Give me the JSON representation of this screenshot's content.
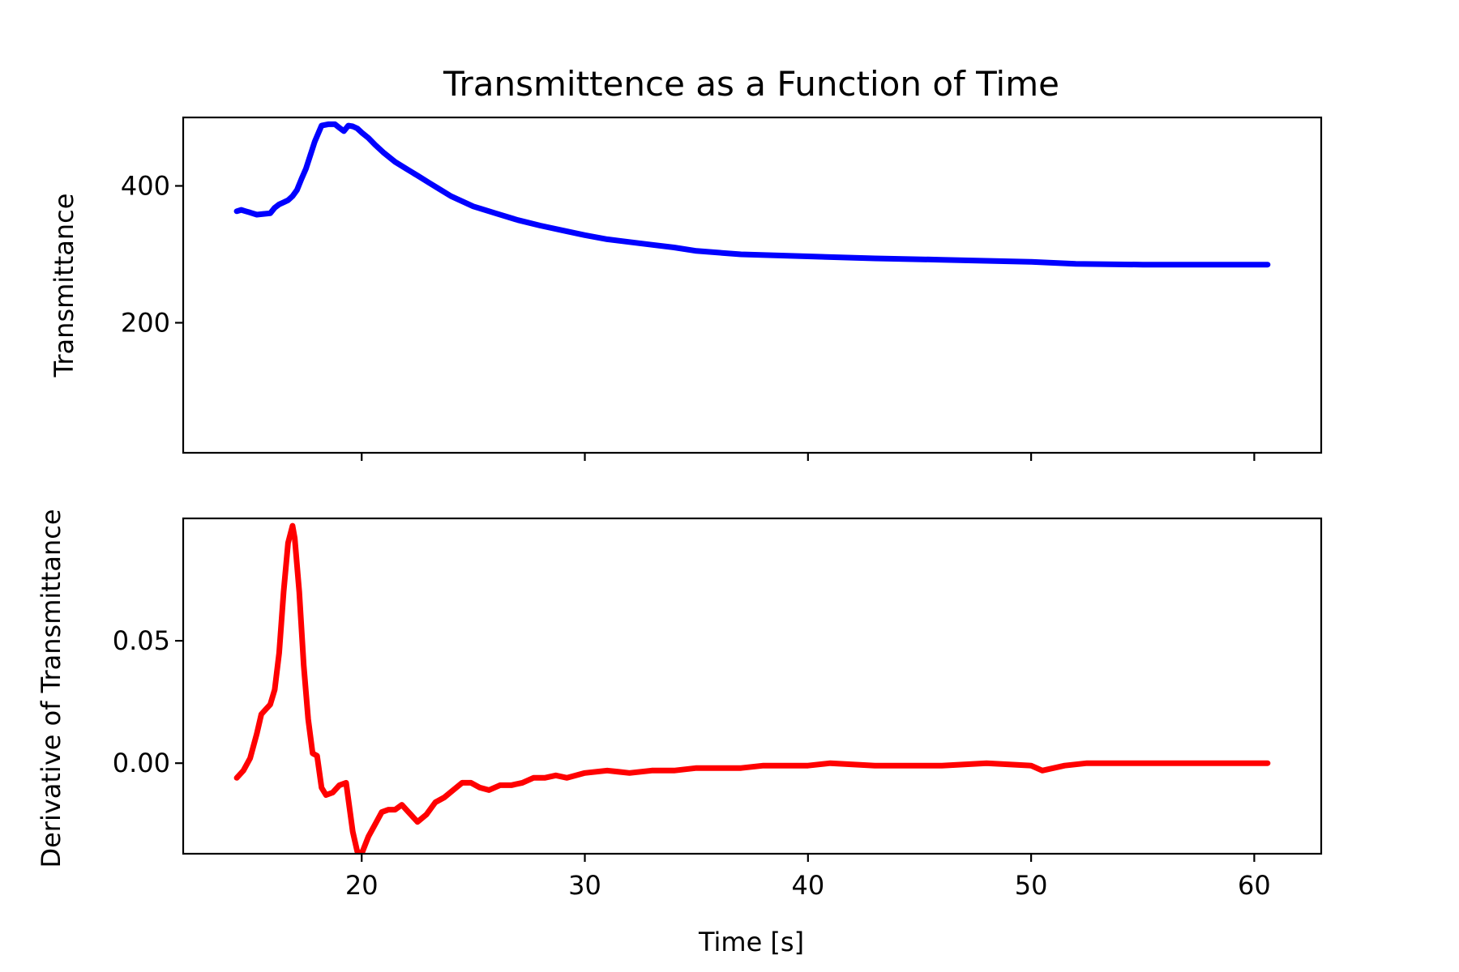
{
  "figure": {
    "title": "Transmittence as a Function of Time"
  },
  "chart_data": [
    {
      "type": "line",
      "title": "Transmittence as a Function of Time",
      "xlabel": "",
      "ylabel": "Transmittance",
      "xlim": [
        12,
        63
      ],
      "ylim": [
        10,
        500
      ],
      "x_ticks": [
        20,
        30,
        40,
        50,
        60
      ],
      "x_tick_labels_visible": false,
      "y_ticks": [
        200,
        400
      ],
      "y_tick_labels": [
        "200",
        "400"
      ],
      "grid": false,
      "series": [
        {
          "color": "#0000ff",
          "x": [
            14.4,
            14.6,
            14.8,
            15.0,
            15.3,
            15.6,
            15.9,
            16.1,
            16.3,
            16.5,
            16.7,
            16.9,
            17.1,
            17.3,
            17.5,
            17.7,
            17.9,
            18.2,
            18.5,
            18.8,
            19.0,
            19.2,
            19.4,
            19.6,
            19.8,
            20.0,
            20.3,
            20.6,
            21.0,
            21.5,
            22.0,
            22.5,
            23.0,
            23.5,
            24.0,
            25.0,
            26.0,
            27.0,
            28.0,
            29.0,
            30.0,
            31.0,
            32.0,
            33.0,
            34.0,
            35.0,
            37.0,
            40.0,
            43.0,
            46.0,
            50.0,
            52.0,
            55.0,
            58.0,
            60.6
          ],
          "y": [
            363,
            365,
            363,
            361,
            358,
            359,
            360,
            368,
            373,
            376,
            379,
            385,
            394,
            410,
            425,
            445,
            465,
            488,
            490,
            490,
            485,
            480,
            488,
            487,
            484,
            478,
            470,
            460,
            448,
            435,
            425,
            415,
            405,
            395,
            385,
            370,
            360,
            350,
            342,
            335,
            328,
            322,
            318,
            314,
            310,
            305,
            300,
            297,
            294,
            292,
            289,
            286,
            285,
            285,
            285
          ]
        }
      ]
    },
    {
      "type": "line",
      "title": "",
      "xlabel": "Time [s]",
      "ylabel": "Derivative of Transmittance",
      "xlim": [
        12,
        63
      ],
      "ylim": [
        -0.037,
        0.1
      ],
      "x_ticks": [
        20,
        30,
        40,
        50,
        60
      ],
      "x_tick_labels": [
        "20",
        "30",
        "40",
        "50",
        "60"
      ],
      "y_ticks": [
        0.0,
        0.05
      ],
      "y_tick_labels": [
        "0.00",
        "0.05"
      ],
      "grid": false,
      "series": [
        {
          "color": "#ff0000",
          "x": [
            14.4,
            14.7,
            15.0,
            15.3,
            15.5,
            15.7,
            15.9,
            16.1,
            16.3,
            16.5,
            16.7,
            16.9,
            17.0,
            17.2,
            17.4,
            17.6,
            17.8,
            18.0,
            18.2,
            18.4,
            18.7,
            19.0,
            19.3,
            19.6,
            19.8,
            20.0,
            20.3,
            20.6,
            20.9,
            21.2,
            21.5,
            21.8,
            22.1,
            22.5,
            22.9,
            23.3,
            23.7,
            24.1,
            24.5,
            24.9,
            25.3,
            25.7,
            26.2,
            26.7,
            27.2,
            27.7,
            28.2,
            28.7,
            29.2,
            30.0,
            31.0,
            32.0,
            33.0,
            34.0,
            35.0,
            37.0,
            38.0,
            40.0,
            41.0,
            43.0,
            45.0,
            46.0,
            48.0,
            50.0,
            50.5,
            51.5,
            52.5,
            54.0,
            56.0,
            58.0,
            60.6
          ],
          "y": [
            -0.006,
            -0.003,
            0.002,
            0.012,
            0.02,
            0.022,
            0.024,
            0.03,
            0.045,
            0.07,
            0.09,
            0.097,
            0.092,
            0.07,
            0.04,
            0.018,
            0.004,
            0.003,
            -0.01,
            -0.013,
            -0.012,
            -0.009,
            -0.008,
            -0.028,
            -0.036,
            -0.037,
            -0.03,
            -0.025,
            -0.02,
            -0.019,
            -0.019,
            -0.017,
            -0.02,
            -0.024,
            -0.021,
            -0.016,
            -0.014,
            -0.011,
            -0.008,
            -0.008,
            -0.01,
            -0.011,
            -0.009,
            -0.009,
            -0.008,
            -0.006,
            -0.006,
            -0.005,
            -0.006,
            -0.004,
            -0.003,
            -0.004,
            -0.003,
            -0.003,
            -0.002,
            -0.002,
            -0.001,
            -0.001,
            0.0,
            -0.001,
            -0.001,
            -0.001,
            0.0,
            -0.001,
            -0.003,
            -0.001,
            0.0,
            0.0,
            0.0,
            0.0,
            0.0
          ]
        }
      ]
    }
  ]
}
